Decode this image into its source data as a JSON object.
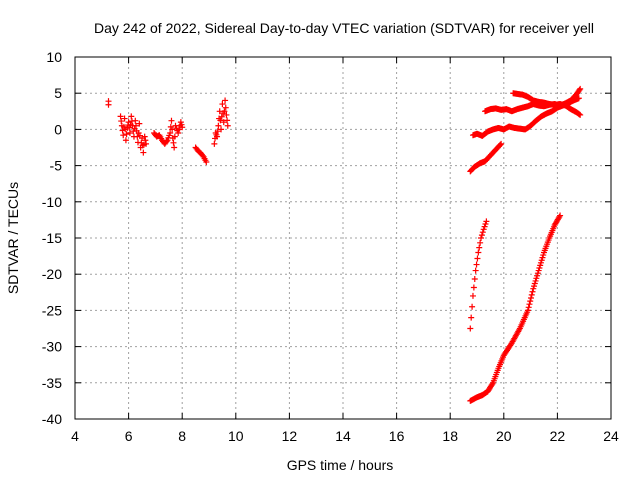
{
  "chart_data": {
    "type": "scatter",
    "title": "Day 242 of 2022, Sidereal Day-to-day VTEC variation (SDTVAR) for receiver yell",
    "xlabel": "GPS time / hours",
    "ylabel": "SDTVAR / TECUs",
    "xlim": [
      4,
      24
    ],
    "ylim": [
      -40,
      10
    ],
    "xticks": [
      "4",
      "6",
      "8",
      "10",
      "12",
      "14",
      "16",
      "18",
      "20",
      "22",
      "24"
    ],
    "yticks": [
      "10",
      "5",
      "0",
      "-5",
      "-10",
      "-15",
      "-20",
      "-25",
      "-30",
      "-35",
      "-40"
    ],
    "grid": true,
    "marker": "+",
    "color": "#ff0000",
    "series": [
      {
        "name": "SDTVAR",
        "segments": [
          [
            [
              5.25,
              3.4
            ],
            [
              5.25,
              3.9
            ]
          ],
          [
            [
              5.7,
              1.8
            ],
            [
              5.75,
              0.5
            ],
            [
              5.8,
              -0.8
            ],
            [
              5.85,
              1.5
            ],
            [
              5.9,
              -1.5
            ],
            [
              5.95,
              0.2
            ],
            [
              6.0,
              1.0
            ],
            [
              6.05,
              -0.5
            ],
            [
              6.1,
              1.8
            ],
            [
              6.15,
              0.5
            ],
            [
              6.2,
              -1.0
            ],
            [
              6.25,
              1.2
            ],
            [
              6.3,
              -0.2
            ],
            [
              6.35,
              -1.8
            ],
            [
              6.4,
              0.8
            ],
            [
              6.45,
              -2.5
            ],
            [
              6.5,
              -1.2
            ],
            [
              6.55,
              -3.2
            ],
            [
              6.6,
              -1.0
            ],
            [
              6.65,
              -2.0
            ]
          ],
          [
            [
              6.95,
              -0.5
            ],
            [
              7.05,
              -1.0
            ],
            [
              7.15,
              -0.8
            ],
            [
              7.25,
              -1.5
            ],
            [
              7.35,
              -2.0
            ],
            [
              7.45,
              -1.5
            ],
            [
              7.55,
              -0.5
            ],
            [
              7.6,
              1.2
            ],
            [
              7.65,
              -1.2
            ],
            [
              7.7,
              -2.5
            ],
            [
              7.75,
              0.5
            ],
            [
              7.85,
              -0.5
            ],
            [
              7.95,
              1.0
            ],
            [
              8.0,
              0.3
            ]
          ],
          [
            [
              8.5,
              -2.5
            ],
            [
              8.6,
              -3.0
            ],
            [
              8.7,
              -3.3
            ],
            [
              8.8,
              -3.8
            ],
            [
              8.9,
              -4.5
            ]
          ],
          [
            [
              9.2,
              -2.0
            ],
            [
              9.25,
              -0.5
            ],
            [
              9.3,
              -1.0
            ],
            [
              9.35,
              0.5
            ],
            [
              9.4,
              2.5
            ],
            [
              9.45,
              0.0
            ],
            [
              9.5,
              3.5
            ],
            [
              9.55,
              1.0
            ],
            [
              9.6,
              4.0
            ],
            [
              9.65,
              2.0
            ],
            [
              9.7,
              0.5
            ]
          ],
          [
            [
              18.75,
              -5.8
            ],
            [
              18.9,
              -5.2
            ],
            [
              19.1,
              -4.7
            ],
            [
              19.3,
              -4.4
            ],
            [
              19.5,
              -3.6
            ],
            [
              19.7,
              -2.8
            ],
            [
              19.9,
              -2.0
            ]
          ],
          [
            [
              18.85,
              -0.8
            ],
            [
              19.0,
              -0.6
            ],
            [
              19.2,
              -0.9
            ],
            [
              19.4,
              -0.3
            ],
            [
              19.6,
              0.0
            ],
            [
              19.8,
              0.2
            ],
            [
              20.0,
              0.0
            ],
            [
              20.2,
              0.4
            ],
            [
              20.4,
              0.2
            ],
            [
              20.6,
              0.1
            ],
            [
              20.8,
              0.0
            ],
            [
              21.0,
              0.5
            ],
            [
              21.2,
              1.2
            ],
            [
              21.4,
              1.8
            ],
            [
              21.6,
              2.2
            ],
            [
              21.8,
              2.5
            ],
            [
              22.0,
              3.0
            ],
            [
              22.2,
              3.3
            ],
            [
              22.4,
              3.6
            ],
            [
              22.6,
              4.0
            ],
            [
              22.8,
              4.3
            ]
          ],
          [
            [
              19.3,
              2.5
            ],
            [
              19.5,
              2.8
            ],
            [
              19.7,
              2.9
            ],
            [
              19.9,
              2.7
            ],
            [
              20.1,
              2.8
            ],
            [
              20.3,
              2.5
            ],
            [
              20.5,
              2.8
            ],
            [
              20.7,
              3.0
            ],
            [
              20.9,
              3.2
            ],
            [
              21.1,
              3.5
            ],
            [
              21.3,
              3.3
            ],
            [
              21.5,
              3.2
            ],
            [
              21.7,
              3.4
            ],
            [
              21.9,
              3.5
            ],
            [
              22.1,
              3.3
            ],
            [
              22.3,
              3.6
            ],
            [
              22.5,
              4.0
            ],
            [
              22.7,
              4.8
            ],
            [
              22.85,
              5.6
            ]
          ],
          [
            [
              20.35,
              5.0
            ],
            [
              20.5,
              4.9
            ],
            [
              20.7,
              4.8
            ],
            [
              20.9,
              4.5
            ],
            [
              21.1,
              4.0
            ],
            [
              21.3,
              3.8
            ],
            [
              21.5,
              3.7
            ],
            [
              21.7,
              3.5
            ],
            [
              21.9,
              3.4
            ],
            [
              22.1,
              3.5
            ],
            [
              22.3,
              3.3
            ],
            [
              22.5,
              2.8
            ],
            [
              22.7,
              2.4
            ],
            [
              22.85,
              2.0
            ]
          ],
          [
            [
              18.75,
              -27.5
            ],
            [
              18.85,
              -23.0
            ],
            [
              18.95,
              -19.5
            ],
            [
              19.05,
              -17.0
            ],
            [
              19.15,
              -15.0
            ],
            [
              19.25,
              -13.8
            ],
            [
              19.35,
              -12.7
            ]
          ],
          [
            [
              18.75,
              -37.5
            ],
            [
              19.0,
              -37.0
            ],
            [
              19.2,
              -36.7
            ],
            [
              19.4,
              -36.2
            ],
            [
              19.6,
              -35.0
            ],
            [
              19.8,
              -33.0
            ],
            [
              20.0,
              -31.2
            ],
            [
              20.3,
              -29.5
            ],
            [
              20.6,
              -27.5
            ],
            [
              20.9,
              -25.0
            ],
            [
              21.1,
              -22.0
            ],
            [
              21.3,
              -19.5
            ],
            [
              21.5,
              -17.0
            ],
            [
              21.7,
              -15.0
            ],
            [
              21.9,
              -13.2
            ],
            [
              22.1,
              -11.9
            ]
          ]
        ]
      }
    ]
  }
}
